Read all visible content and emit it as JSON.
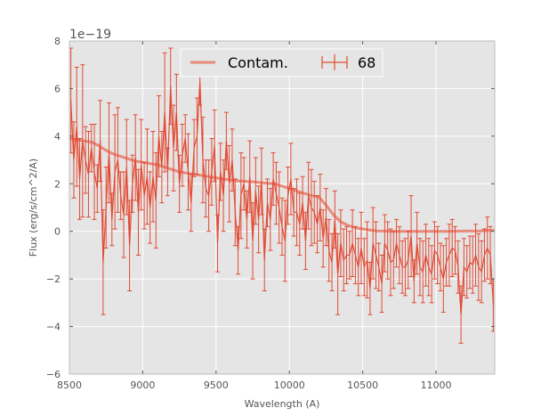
{
  "chart_data": {
    "type": "line",
    "title": "",
    "xlabel": "Wavelength (A)",
    "ylabel": "Flux (erg/s/cm^2/A)",
    "y_offset_label": "1e−19",
    "xlim": [
      8500,
      11400
    ],
    "ylim": [
      -6,
      8
    ],
    "xticks": [
      8500,
      9000,
      9500,
      10000,
      10500,
      11000
    ],
    "yticks": [
      -6,
      -4,
      -2,
      0,
      2,
      4,
      6,
      8
    ],
    "ytick_labels": [
      "−6",
      "−4",
      "−2",
      "0",
      "2",
      "4",
      "6",
      "8"
    ],
    "grid": true,
    "legend_placement": "upper-center",
    "colors": {
      "background": "#e5e5e5",
      "grid": "#ffffff",
      "series": "#e24a33",
      "contam": "#e88a7a"
    },
    "series": [
      {
        "name": "Contam.",
        "style": "thick-line",
        "x": [
          8500,
          8550,
          8600,
          8650,
          8700,
          8750,
          8800,
          8850,
          8900,
          8950,
          9000,
          9050,
          9100,
          9150,
          9200,
          9250,
          9300,
          9350,
          9400,
          9450,
          9500,
          9550,
          9600,
          9650,
          9700,
          9750,
          9800,
          9850,
          9900,
          9950,
          10000,
          10050,
          10100,
          10150,
          10200,
          10250,
          10300,
          10350,
          10400,
          10450,
          10500,
          10550,
          10600,
          10650,
          10700,
          10800,
          10900,
          11000,
          11100,
          11200,
          11300,
          11400
        ],
        "y": [
          3.9,
          3.85,
          3.8,
          3.75,
          3.6,
          3.4,
          3.25,
          3.15,
          3.05,
          2.95,
          2.9,
          2.85,
          2.8,
          2.7,
          2.6,
          2.5,
          2.45,
          2.4,
          2.35,
          2.3,
          2.25,
          2.2,
          2.15,
          2.12,
          2.1,
          2.08,
          2.05,
          2.02,
          2.0,
          1.9,
          1.8,
          1.7,
          1.6,
          1.5,
          1.45,
          1.1,
          0.7,
          0.4,
          0.25,
          0.15,
          0.1,
          0.05,
          0.02,
          0.01,
          0.0,
          0.0,
          0.0,
          0.0,
          0.0,
          0.01,
          0.02,
          0.05
        ]
      },
      {
        "name": "68",
        "style": "errorbar",
        "x": [
          8510,
          8530,
          8550,
          8570,
          8590,
          8610,
          8630,
          8650,
          8670,
          8690,
          8710,
          8730,
          8750,
          8770,
          8790,
          8810,
          8830,
          8850,
          8870,
          8890,
          8910,
          8930,
          8950,
          8970,
          8990,
          9010,
          9030,
          9050,
          9070,
          9090,
          9110,
          9130,
          9150,
          9170,
          9190,
          9210,
          9230,
          9250,
          9270,
          9290,
          9310,
          9330,
          9350,
          9370,
          9390,
          9410,
          9430,
          9450,
          9470,
          9490,
          9510,
          9530,
          9550,
          9570,
          9590,
          9610,
          9630,
          9650,
          9670,
          9690,
          9710,
          9730,
          9750,
          9770,
          9790,
          9810,
          9830,
          9850,
          9870,
          9890,
          9910,
          9930,
          9950,
          9970,
          9990,
          10010,
          10030,
          10050,
          10070,
          10090,
          10110,
          10130,
          10150,
          10170,
          10190,
          10210,
          10230,
          10250,
          10270,
          10290,
          10310,
          10330,
          10350,
          10370,
          10390,
          10410,
          10430,
          10450,
          10470,
          10490,
          10510,
          10530,
          10550,
          10570,
          10590,
          10610,
          10630,
          10650,
          10670,
          10690,
          10710,
          10730,
          10750,
          10770,
          10790,
          10810,
          10830,
          10850,
          10870,
          10890,
          10910,
          10930,
          10950,
          10970,
          10990,
          11010,
          11030,
          11050,
          11070,
          11090,
          11110,
          11130,
          11150,
          11170,
          11190,
          11210,
          11230,
          11250,
          11270,
          11290,
          11310,
          11330,
          11350,
          11370,
          11390
        ],
        "y": [
          5.5,
          3.0,
          4.4,
          2.2,
          3.8,
          3.0,
          2.4,
          3.5,
          2.5,
          1.8,
          3.8,
          -1.3,
          1.0,
          3.3,
          0.5,
          2.5,
          3.0,
          1.5,
          0.7,
          2.7,
          -0.6,
          2.0,
          3.1,
          0.8,
          2.8,
          1.5,
          2.3,
          1.0,
          2.3,
          1.3,
          4.0,
          2.7,
          5.0,
          2.5,
          6.1,
          3.5,
          5.0,
          2.0,
          3.2,
          3.9,
          2.5,
          1.2,
          3.5,
          4.0,
          6.3,
          3.0,
          1.8,
          1.5,
          2.5,
          3.6,
          -0.5,
          2.5,
          1.5,
          3.8,
          2.0,
          3.0,
          0.8,
          -0.8,
          1.5,
          2.0,
          0.5,
          2.3,
          -0.4,
          1.7,
          0.5,
          2.1,
          -1.2,
          1.2,
          0.5,
          2.2,
          1.6,
          1.0,
          0.2,
          -0.4,
          1.5,
          2.2,
          0.8,
          0.8,
          0.3,
          1.2,
          -0.4,
          1.5,
          1.0,
          0.8,
          0.3,
          1.0,
          -0.3,
          0.6,
          -0.8,
          -1.3,
          0.5,
          -1.8,
          -0.5,
          -1.2,
          -1.0,
          -1.0,
          -0.5,
          -1.0,
          -1.5,
          -0.7,
          -1.5,
          -1.2,
          -2.4,
          -0.5,
          -1.0,
          -1.5,
          -2.2,
          -0.5,
          -0.8,
          -1.3,
          -1.2,
          -0.5,
          -1.0,
          -1.5,
          -1.5,
          -1.2,
          -0.2,
          -2.1,
          -0.5,
          -1.5,
          -1.7,
          -1.0,
          -1.5,
          -1.8,
          -0.8,
          -1.0,
          -1.5,
          -2.0,
          -1.3,
          -1.0,
          -0.7,
          -0.8,
          -1.5,
          -3.5,
          -1.5,
          -1.7,
          -1.3,
          -1.4,
          -1.0,
          -1.5,
          -1.7,
          -1.0,
          -0.7,
          -1.0,
          -3.1
        ],
        "yerr": [
          2.2,
          1.6,
          2.5,
          1.7,
          3.2,
          1.4,
          1.8,
          1.0,
          2.0,
          1.0,
          1.7,
          2.2,
          1.7,
          2.1,
          1.1,
          2.4,
          2.2,
          1.0,
          1.8,
          2.0,
          1.9,
          1.2,
          1.8,
          1.8,
          1.9,
          1.4,
          2.0,
          1.5,
          1.9,
          2.0,
          1.7,
          1.5,
          2.5,
          1.0,
          1.6,
          1.8,
          1.6,
          1.2,
          1.3,
          1.0,
          1.6,
          1.2,
          1.2,
          1.6,
          1.0,
          1.8,
          1.2,
          1.5,
          1.4,
          1.5,
          1.2,
          1.2,
          1.5,
          1.2,
          1.6,
          1.3,
          1.4,
          1.0,
          1.8,
          1.1,
          1.2,
          1.5,
          1.6,
          1.4,
          1.4,
          1.4,
          1.3,
          1.0,
          1.3,
          1.1,
          1.3,
          1.5,
          1.2,
          1.7,
          1.2,
          1.5,
          1.0,
          1.4,
          1.3,
          1.1,
          1.2,
          1.4,
          1.6,
          1.3,
          1.2,
          1.4,
          1.2,
          1.2,
          1.3,
          1.2,
          1.2,
          1.7,
          1.4,
          1.3,
          1.2,
          1.0,
          1.4,
          1.2,
          1.2,
          1.5,
          1.2,
          1.6,
          1.1,
          1.5,
          1.4,
          1.0,
          1.2,
          1.2,
          1.2,
          1.4,
          1.2,
          1.0,
          1.2,
          1.1,
          1.2,
          1.2,
          1.7,
          0.9,
          1.3,
          1.2,
          1.3,
          1.3,
          1.2,
          1.2,
          1.2,
          1.2,
          1.0,
          1.4,
          1.0,
          1.3,
          1.2,
          1.0,
          1.1,
          1.2,
          1.2,
          1.1,
          1.1,
          1.2,
          1.3,
          1.4,
          1.3,
          1.1,
          1.3,
          1.2,
          1.1
        ]
      }
    ]
  }
}
